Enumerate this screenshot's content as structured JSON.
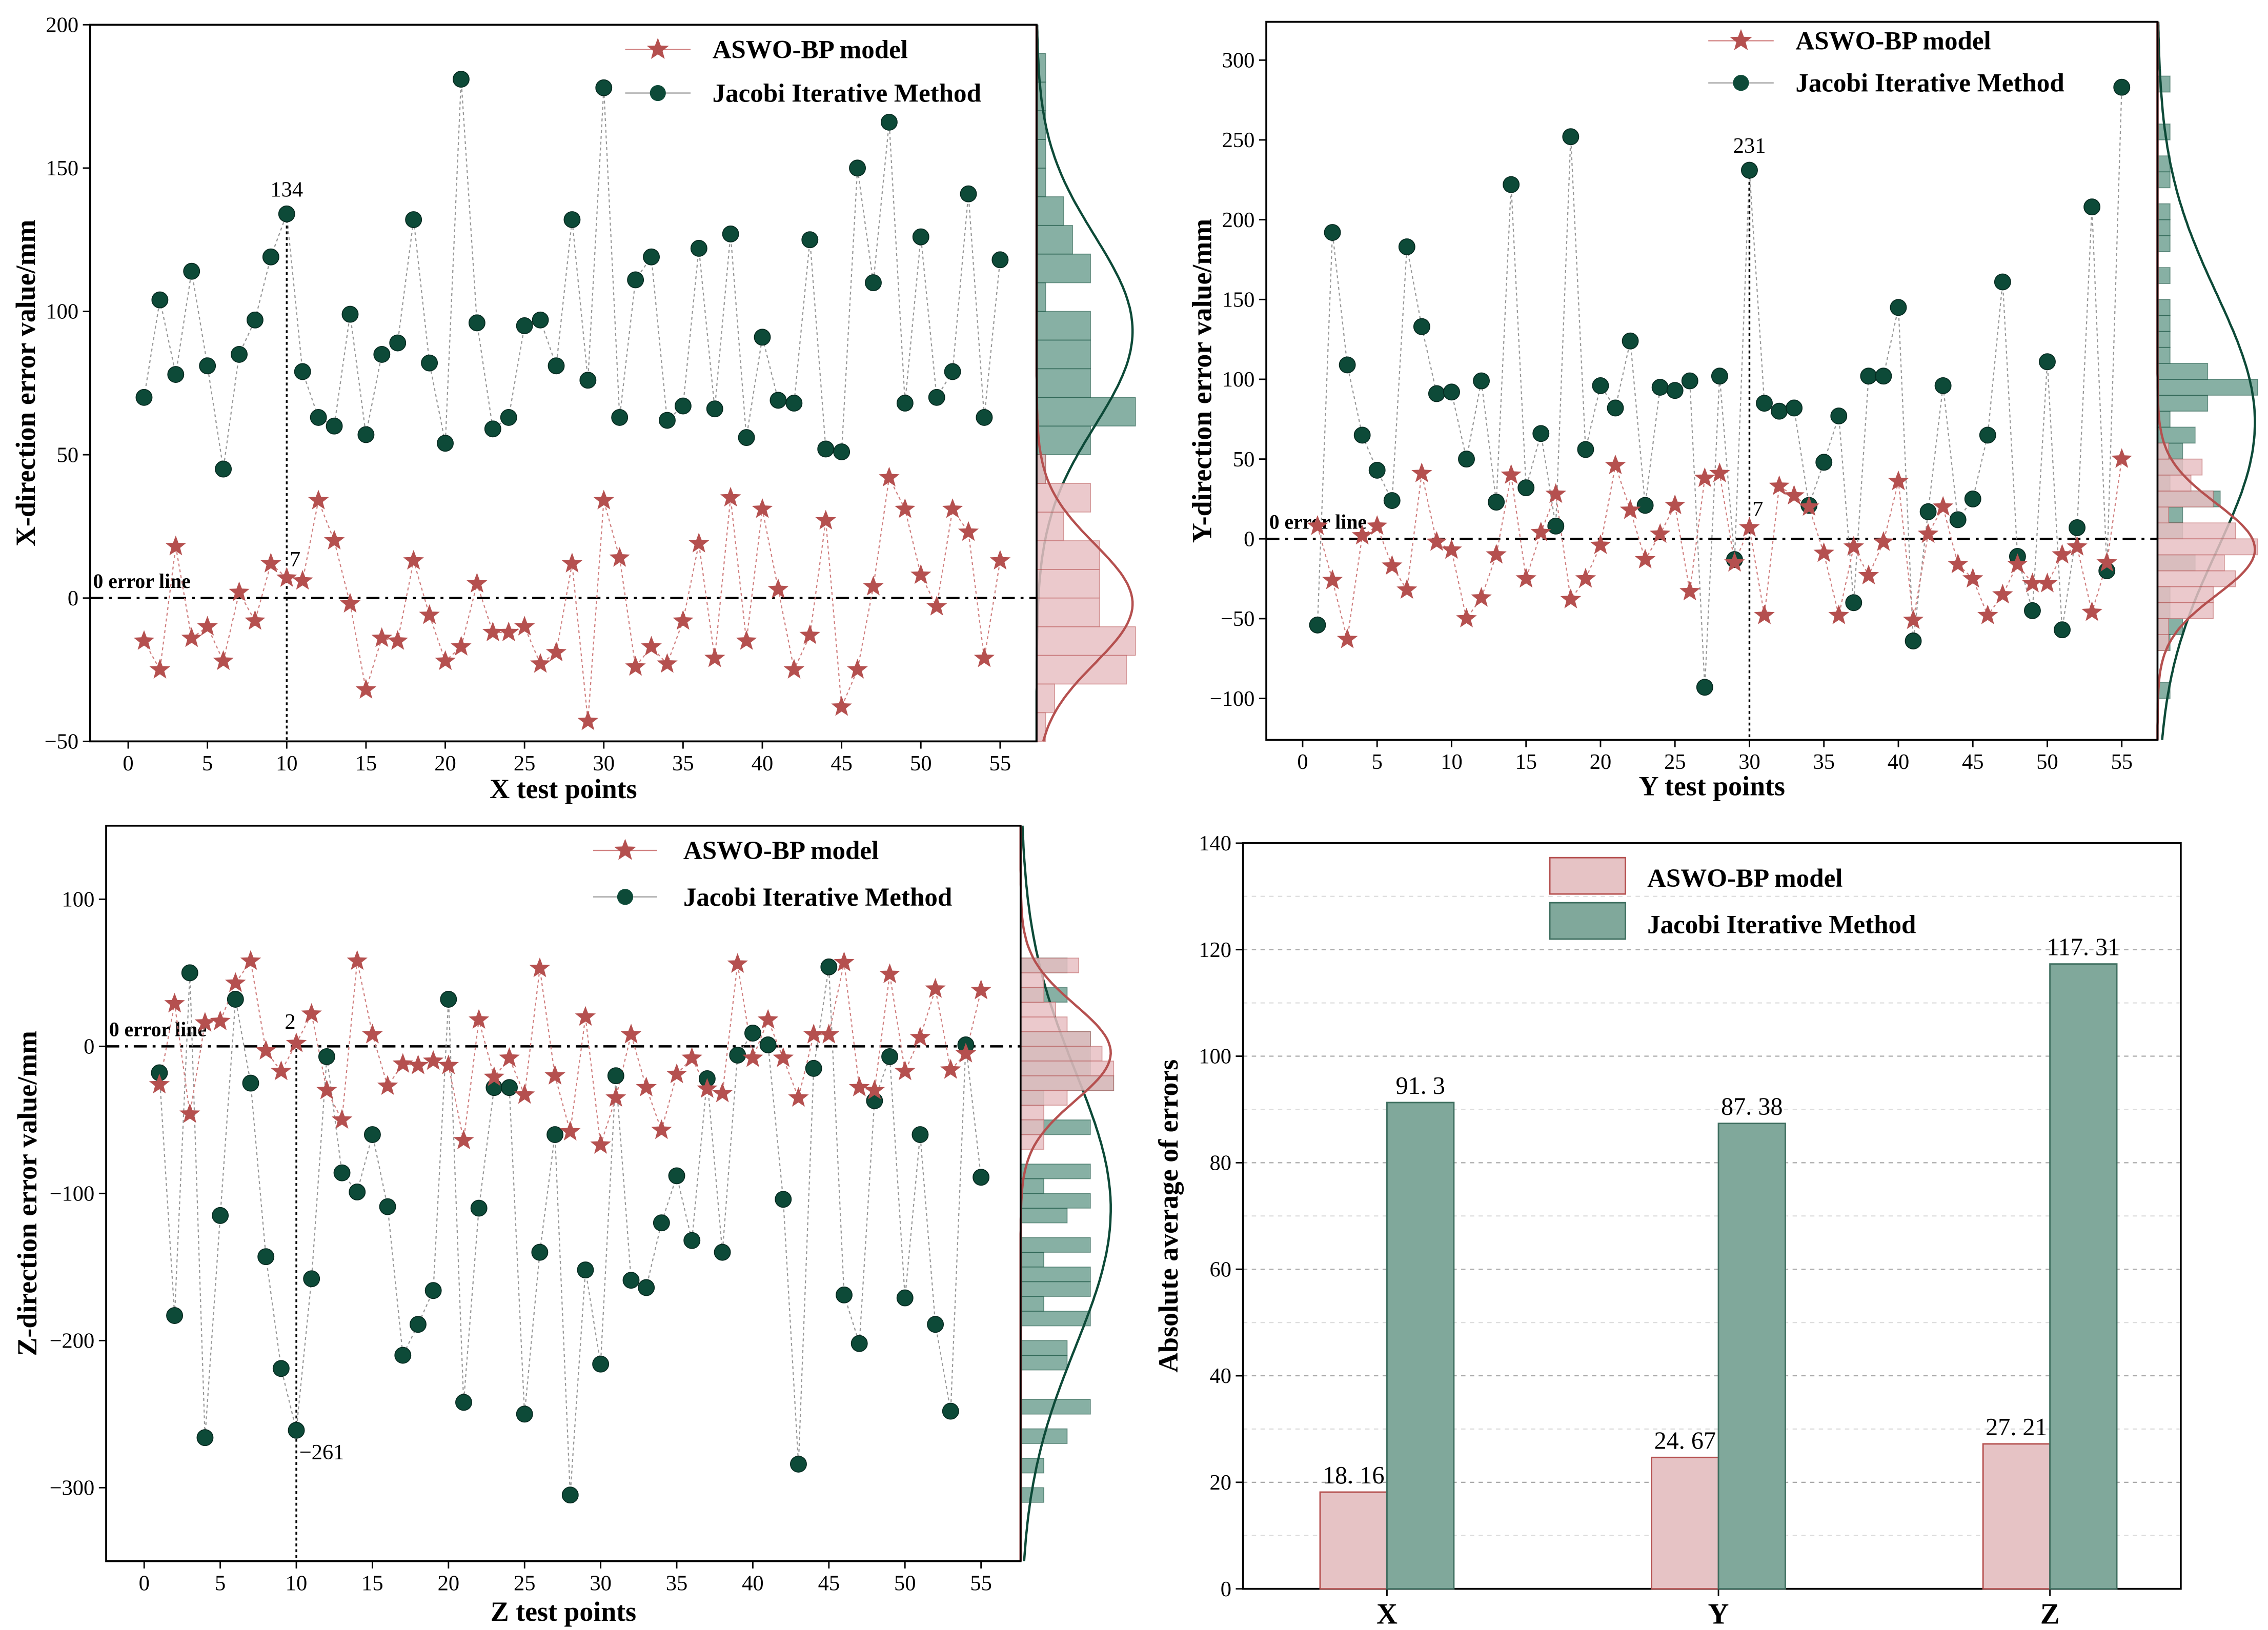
{
  "colors": {
    "aswo": "#b5504f",
    "jacobi": "#0d4a38",
    "hist_pink": "#e8c0c3",
    "hist_green": "#5f9585",
    "bar_pink": "#e6c3c5",
    "bar_green": "#80a89b"
  },
  "legend": {
    "aswo": "ASWO-BP model",
    "jacobi": "Jacobi Iterative Method"
  },
  "zero_line_label": "0 error line",
  "chart_data": [
    {
      "type": "scatter",
      "id": "x",
      "xlabel": "X test points",
      "ylabel": "X-direction error value/mm",
      "xlim": [
        0,
        55
      ],
      "ylim": [
        -50,
        200
      ],
      "xticks": [
        0,
        5,
        10,
        15,
        20,
        25,
        30,
        35,
        40,
        45,
        50,
        55
      ],
      "yticks": [
        -50,
        0,
        50,
        100,
        150,
        200
      ],
      "annotation": {
        "point": 10,
        "top_label": "134",
        "bottom_label": "7"
      },
      "series": [
        {
          "name": "ASWO-BP model",
          "values": [
            -15,
            -25,
            18,
            -14,
            -10,
            -22,
            2,
            -8,
            12,
            7,
            6,
            34,
            20,
            -2,
            -32,
            -14,
            -15,
            13,
            -6,
            -22,
            -17,
            5,
            -12,
            -12,
            -10,
            -23,
            -19,
            12,
            -43,
            34,
            14,
            -24,
            -17,
            -23,
            -8,
            19,
            -21,
            35,
            -15,
            31,
            3,
            -25,
            -13,
            27,
            -38,
            -25,
            4,
            42,
            31,
            8,
            -3,
            31,
            23,
            -21,
            13
          ]
        },
        {
          "name": "Jacobi Iterative Method",
          "values": [
            70,
            104,
            78,
            114,
            81,
            45,
            85,
            97,
            119,
            134,
            79,
            63,
            60,
            99,
            57,
            85,
            89,
            132,
            82,
            54,
            181,
            96,
            59,
            63,
            95,
            97,
            81,
            132,
            76,
            178,
            63,
            111,
            119,
            62,
            67,
            122,
            66,
            127,
            56,
            91,
            69,
            68,
            125,
            52,
            51,
            150,
            110,
            166,
            68,
            126,
            70,
            79,
            141,
            63,
            118
          ]
        }
      ]
    },
    {
      "type": "scatter",
      "id": "y",
      "xlabel": "Y test points",
      "ylabel": "Y-direction error value/mm",
      "xlim": [
        0,
        55
      ],
      "ylim": [
        -100,
        300
      ],
      "xticks": [
        0,
        5,
        10,
        15,
        20,
        25,
        30,
        35,
        40,
        45,
        50,
        55
      ],
      "yticks": [
        -100,
        -50,
        0,
        50,
        100,
        150,
        200,
        250,
        300
      ],
      "annotation": {
        "point": 30,
        "top_label": "231",
        "bottom_label": "7"
      },
      "series": [
        {
          "name": "ASWO-BP model",
          "values": [
            8,
            -26,
            -63,
            2,
            8,
            -17,
            -32,
            41,
            -2,
            -7,
            -50,
            -37,
            -10,
            40,
            -25,
            4,
            28,
            -38,
            -25,
            -4,
            46,
            18,
            -13,
            3,
            21,
            -33,
            38,
            41,
            -15,
            7,
            -48,
            33,
            27,
            20,
            -9,
            -48,
            -5,
            -23,
            -2,
            36,
            -51,
            3,
            20,
            -16,
            -25,
            -48,
            -35,
            -16,
            -28,
            -28,
            -10,
            -5,
            -46,
            -15,
            50
          ]
        },
        {
          "name": "Jacobi Iterative Method",
          "values": [
            -54,
            192,
            109,
            65,
            43,
            24,
            183,
            133,
            91,
            92,
            50,
            99,
            23,
            222,
            32,
            66,
            8,
            252,
            56,
            96,
            82,
            124,
            21,
            95,
            93,
            99,
            -93,
            102,
            -13,
            231,
            85,
            80,
            82,
            21,
            48,
            77,
            -40,
            102,
            102,
            145,
            -64,
            17,
            96,
            12,
            25,
            65,
            161,
            -11,
            -45,
            111,
            -57,
            7,
            208,
            -20,
            283
          ]
        }
      ]
    },
    {
      "type": "scatter",
      "id": "z",
      "xlabel": "Z test points",
      "ylabel": "Z-direction error value/mm",
      "xlim": [
        0,
        55
      ],
      "ylim": [
        -350,
        150
      ],
      "xticks": [
        0,
        5,
        10,
        15,
        20,
        25,
        30,
        35,
        40,
        45,
        50,
        55
      ],
      "yticks": [
        -300,
        -200,
        -100,
        0,
        100
      ],
      "annotation": {
        "point": 10,
        "top_label": "2",
        "bottom_label": "−261"
      },
      "series": [
        {
          "name": "ASWO-BP model",
          "values": [
            -26,
            29,
            -46,
            16,
            17,
            43,
            58,
            -3,
            -17,
            2,
            22,
            -30,
            -50,
            58,
            8,
            -27,
            -12,
            -13,
            -10,
            -13,
            -64,
            18,
            -21,
            -8,
            -33,
            53,
            -20,
            -58,
            20,
            -67,
            -35,
            8,
            -28,
            -57,
            -19,
            -8,
            -29,
            -32,
            56,
            -8,
            18,
            -8,
            -35,
            8,
            8,
            57,
            -28,
            -30,
            49,
            -17,
            6,
            39,
            -16,
            -5,
            38
          ]
        },
        {
          "name": "Jacobi Iterative Method",
          "values": [
            -18,
            -183,
            50,
            -266,
            -115,
            32,
            -25,
            -143,
            -219,
            -261,
            -158,
            -7,
            -86,
            -99,
            -60,
            -109,
            -210,
            -189,
            -166,
            32,
            -242,
            -110,
            -28,
            -28,
            -250,
            -140,
            -60,
            -305,
            -152,
            -216,
            -20,
            -159,
            -164,
            -120,
            -88,
            -132,
            -22,
            -140,
            -6,
            9,
            1,
            -104,
            -284,
            -15,
            54,
            -169,
            -202,
            -37,
            -7,
            -171,
            -60,
            -189,
            -248,
            1,
            -89
          ]
        }
      ]
    },
    {
      "type": "bar",
      "id": "avg",
      "ylabel": "Absolute average of errors",
      "categories": [
        "X",
        "Y",
        "Z"
      ],
      "ylim": [
        0,
        140
      ],
      "yticks": [
        0,
        20,
        40,
        60,
        80,
        100,
        120,
        140
      ],
      "series": [
        {
          "name": "ASWO-BP model",
          "values": [
            18.16,
            24.67,
            27.21
          ],
          "labels": [
            "18. 16",
            "24. 67",
            "27. 21"
          ]
        },
        {
          "name": "Jacobi Iterative Method",
          "values": [
            91.3,
            87.38,
            117.31
          ],
          "labels": [
            "91. 3",
            "87. 38",
            "117. 31"
          ]
        }
      ]
    }
  ]
}
